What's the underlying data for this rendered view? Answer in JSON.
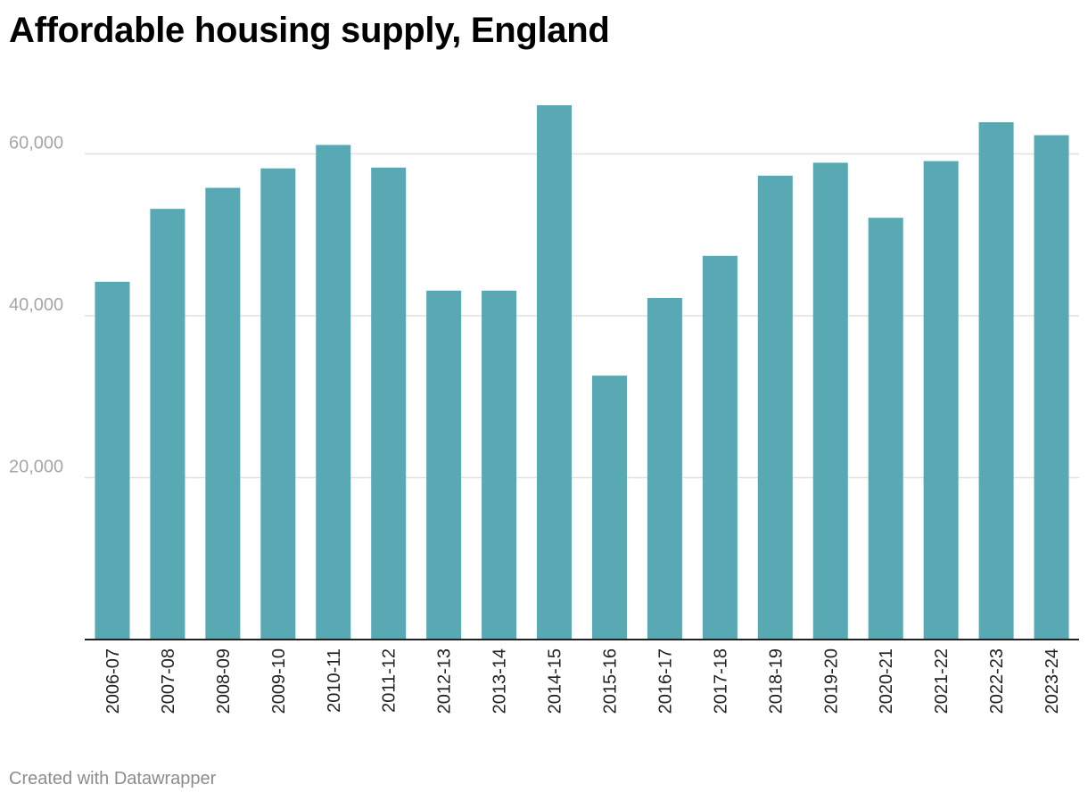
{
  "chart_data": {
    "type": "bar",
    "title": "Affordable housing supply, England",
    "categories": [
      "2006-07",
      "2007-08",
      "2008-09",
      "2009-10",
      "2010-11",
      "2011-12",
      "2012-13",
      "2013-14",
      "2014-15",
      "2015-16",
      "2016-17",
      "2017-18",
      "2018-19",
      "2019-20",
      "2020-21",
      "2021-22",
      "2022-23",
      "2023-24"
    ],
    "values": [
      44200,
      53200,
      55800,
      58200,
      61100,
      58300,
      43100,
      43100,
      66000,
      32600,
      42200,
      47400,
      57300,
      58900,
      52100,
      59100,
      63900,
      62300
    ],
    "xlabel": "",
    "ylabel": "",
    "ylim": [
      0,
      66000
    ],
    "yticks": [
      20000,
      40000,
      60000
    ],
    "ytick_labels": [
      "20,000",
      "40,000",
      "60,000"
    ],
    "grid": true,
    "bar_color": "#58a9b4"
  },
  "footer": {
    "credit": "Created with Datawrapper"
  }
}
